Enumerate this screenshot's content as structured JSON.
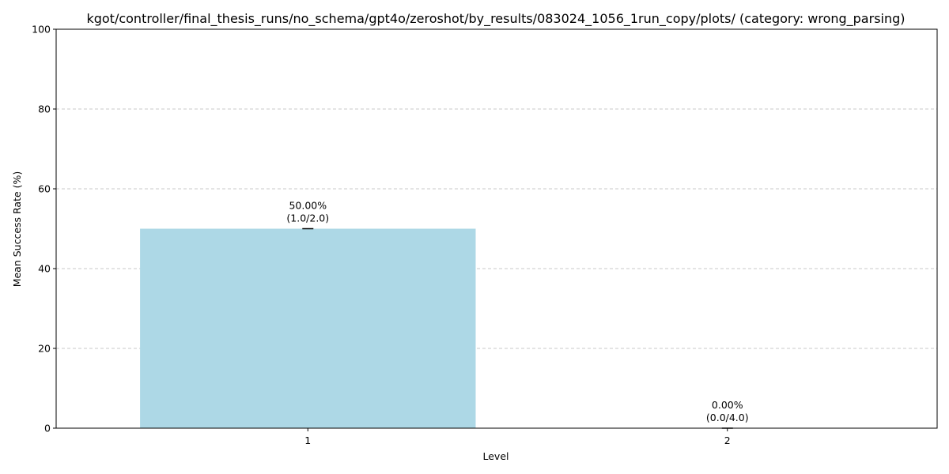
{
  "chart_data": {
    "type": "bar",
    "title": "kgot/controller/final_thesis_runs/no_schema/gpt4o/zeroshot/by_results/083024_1056_1run_copy/plots/ (category: wrong_parsing)",
    "xlabel": "Level",
    "ylabel": "Mean Success Rate (%)",
    "categories": [
      "1",
      "2"
    ],
    "values": [
      50.0,
      0.0
    ],
    "error": [
      0,
      0
    ],
    "bar_labels": [
      {
        "line1": "50.00%",
        "line2": "(1.0/2.0)"
      },
      {
        "line1": "0.00%",
        "line2": "(0.0/4.0)"
      }
    ],
    "ylim": [
      0,
      100
    ],
    "yticks": [
      0,
      20,
      40,
      60,
      80,
      100
    ],
    "grid": "y-dashed",
    "bar_color": "#add8e6",
    "legend": "none"
  }
}
